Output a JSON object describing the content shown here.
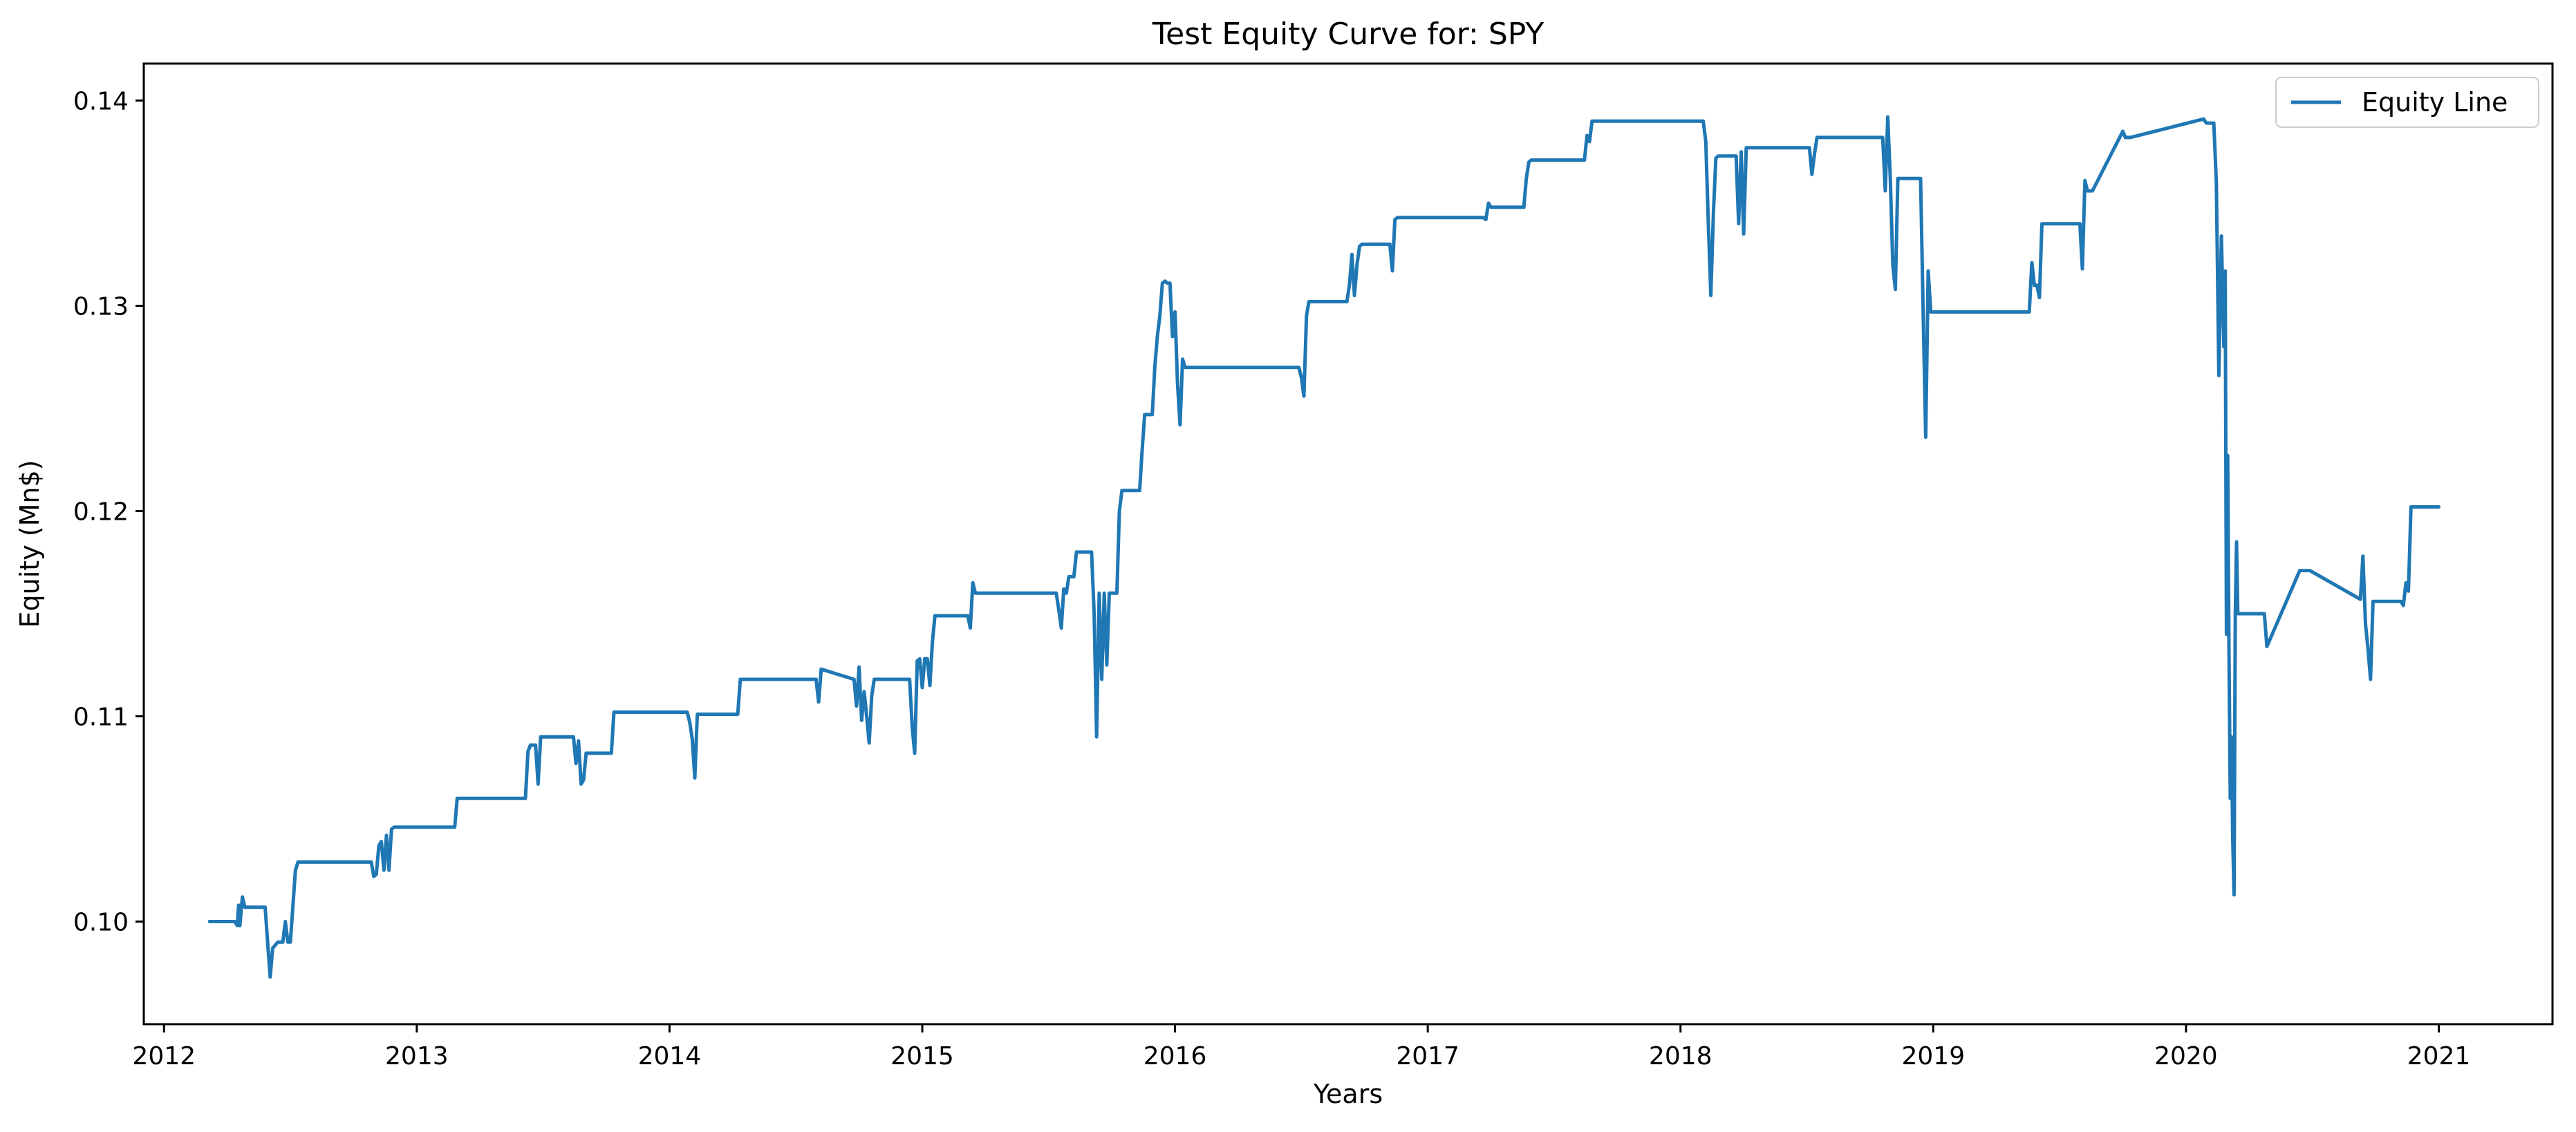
{
  "chart_data": {
    "type": "line",
    "title": "Test Equity Curve for: SPY",
    "xlabel": "Years",
    "ylabel": "Equity (Mn$)",
    "xlim": [
      2011.92,
      2021.45
    ],
    "ylim": [
      0.095,
      0.1418
    ],
    "x_ticks": [
      2012,
      2013,
      2014,
      2015,
      2016,
      2017,
      2018,
      2019,
      2020,
      2021
    ],
    "x_tick_labels": [
      "2012",
      "2013",
      "2014",
      "2015",
      "2016",
      "2017",
      "2018",
      "2019",
      "2020",
      "2021"
    ],
    "y_ticks": [
      0.1,
      0.11,
      0.12,
      0.13,
      0.14
    ],
    "y_tick_labels": [
      "0.10",
      "0.11",
      "0.12",
      "0.13",
      "0.14"
    ],
    "legend_position": "upper right",
    "grid": false,
    "colors": {
      "line": "#1f77b4",
      "axes": "#000000",
      "background": "#ffffff",
      "legend_border": "#cccccc"
    },
    "series": [
      {
        "name": "Equity Line",
        "x": [
          2012.18,
          2012.28,
          2012.29,
          2012.295,
          2012.3,
          2012.31,
          2012.32,
          2012.325,
          2012.33,
          2012.4,
          2012.41,
          2012.42,
          2012.43,
          2012.45,
          2012.47,
          2012.48,
          2012.49,
          2012.5,
          2012.52,
          2012.53,
          2012.82,
          2012.83,
          2012.84,
          2012.85,
          2012.86,
          2012.87,
          2012.88,
          2012.89,
          2012.9,
          2012.91,
          2013.15,
          2013.16,
          2013.43,
          2013.44,
          2013.45,
          2013.47,
          2013.48,
          2013.49,
          2013.62,
          2013.63,
          2013.64,
          2013.65,
          2013.66,
          2013.67,
          2013.77,
          2013.78,
          2014.07,
          2014.08,
          2014.09,
          2014.1,
          2014.11,
          2014.27,
          2014.28,
          2014.58,
          2014.59,
          2014.6,
          2014.73,
          2014.74,
          2014.75,
          2014.76,
          2014.77,
          2014.78,
          2014.79,
          2014.8,
          2014.81,
          2014.95,
          2014.96,
          2014.97,
          2014.98,
          2014.99,
          2015.0,
          2015.01,
          2015.02,
          2015.03,
          2015.04,
          2015.05,
          2015.18,
          2015.19,
          2015.2,
          2015.21,
          2015.53,
          2015.54,
          2015.55,
          2015.56,
          2015.57,
          2015.58,
          2015.59,
          2015.6,
          2015.61,
          2015.62,
          2015.63,
          2015.64,
          2015.65,
          2015.66,
          2015.67,
          2015.68,
          2015.69,
          2015.7,
          2015.71,
          2015.72,
          2015.73,
          2015.74,
          2015.75,
          2015.76,
          2015.77,
          2015.78,
          2015.79,
          2015.8,
          2015.81,
          2015.82,
          2015.83,
          2015.84,
          2015.85,
          2015.86,
          2015.87,
          2015.88,
          2015.89,
          2015.9,
          2015.91,
          2015.92,
          2015.93,
          2015.94,
          2015.95,
          2015.96,
          2015.97,
          2015.98,
          2015.99,
          2016.0,
          2016.01,
          2016.02,
          2016.03,
          2016.04,
          2016.05,
          2016.06,
          2016.48,
          2016.49,
          2016.5,
          2016.51,
          2016.52,
          2016.53,
          2016.54,
          2016.55,
          2016.56,
          2016.57,
          2016.67,
          2016.68,
          2016.69,
          2016.7,
          2016.71,
          2016.72,
          2016.73,
          2016.74,
          2016.75,
          2016.76,
          2016.84,
          2016.85,
          2016.86,
          2016.87,
          2016.88,
          2017.22,
          2017.23,
          2017.24,
          2017.25,
          2017.26,
          2017.38,
          2017.39,
          2017.4,
          2017.41,
          2017.61,
          2017.62,
          2017.63,
          2017.64,
          2017.65,
          2017.66,
          2017.67,
          2018.08,
          2018.09,
          2018.1,
          2018.11,
          2018.12,
          2018.13,
          2018.14,
          2018.15,
          2018.16,
          2018.21,
          2018.22,
          2018.23,
          2018.24,
          2018.25,
          2018.26,
          2018.27,
          2018.28,
          2018.5,
          2018.51,
          2018.52,
          2018.53,
          2018.54,
          2018.55,
          2018.78,
          2018.79,
          2018.8,
          2018.81,
          2018.82,
          2018.83,
          2018.84,
          2018.85,
          2018.86,
          2018.87,
          2018.88,
          2018.89,
          2018.95,
          2018.96,
          2018.97,
          2018.98,
          2018.99,
          2019.0,
          2019.01,
          2019.02,
          2019.03,
          2019.38,
          2019.39,
          2019.4,
          2019.41,
          2019.42,
          2019.43,
          2019.44,
          2019.45,
          2019.46,
          2019.58,
          2019.59,
          2019.6,
          2019.61,
          2019.62,
          2019.63,
          2019.75,
          2019.76,
          2019.77,
          2019.78,
          2020.07,
          2020.08,
          2020.09,
          2020.1,
          2020.11,
          2020.12,
          2020.13,
          2020.14,
          2020.15,
          2020.155,
          2020.16,
          2020.165,
          2020.17,
          2020.175,
          2020.18,
          2020.185,
          2020.19,
          2020.195,
          2020.2,
          2020.205,
          2020.21,
          2020.215,
          2020.22,
          2020.225,
          2020.23,
          2020.235,
          2020.24,
          2020.25,
          2020.26,
          2020.27,
          2020.28,
          2020.29,
          2020.3,
          2020.31,
          2020.32,
          2020.45,
          2020.46,
          2020.47,
          2020.48,
          2020.49,
          2020.69,
          2020.7,
          2020.71,
          2020.72,
          2020.73,
          2020.74,
          2020.75,
          2020.76,
          2020.77,
          2020.78,
          2020.79,
          2020.8,
          2020.85,
          2020.86,
          2020.87,
          2020.88,
          2020.89,
          2020.9,
          2020.91,
          2021.0
        ],
        "y": [
          0.1,
          0.1,
          0.0998,
          0.1008,
          0.0998,
          0.1012,
          0.1007,
          0.1007,
          0.1007,
          0.1007,
          0.099,
          0.0973,
          0.0987,
          0.099,
          0.099,
          0.1,
          0.099,
          0.099,
          0.1025,
          0.1029,
          0.1029,
          0.1022,
          0.1023,
          0.1037,
          0.1039,
          0.1025,
          0.1042,
          0.1025,
          0.1045,
          0.1046,
          0.1046,
          0.106,
          0.106,
          0.1083,
          0.1086,
          0.1086,
          0.1067,
          0.109,
          0.109,
          0.1077,
          0.1088,
          0.1067,
          0.1069,
          0.1082,
          0.1082,
          0.1102,
          0.1102,
          0.1097,
          0.1089,
          0.107,
          0.1101,
          0.1101,
          0.1118,
          0.1118,
          0.1107,
          0.1123,
          0.1118,
          0.1105,
          0.1124,
          0.1098,
          0.1112,
          0.11,
          0.1087,
          0.111,
          0.1118,
          0.1118,
          0.1095,
          0.1082,
          0.1127,
          0.1128,
          0.1114,
          0.1128,
          0.1128,
          0.1115,
          0.1136,
          0.1149,
          0.1149,
          0.1143,
          0.1165,
          0.116,
          0.116,
          0.1152,
          0.1143,
          0.1162,
          0.116,
          0.1168,
          0.1168,
          0.1168,
          0.118,
          0.118,
          0.118,
          0.118,
          0.118,
          0.118,
          0.118,
          0.115,
          0.109,
          0.116,
          0.1118,
          0.116,
          0.1125,
          0.116,
          0.116,
          0.116,
          0.116,
          0.12,
          0.121,
          0.121,
          0.121,
          0.121,
          0.121,
          0.121,
          0.121,
          0.121,
          0.123,
          0.1247,
          0.1247,
          0.1247,
          0.1247,
          0.127,
          0.1285,
          0.1295,
          0.1311,
          0.1312,
          0.1311,
          0.1311,
          0.1285,
          0.1297,
          0.1262,
          0.1242,
          0.1274,
          0.127,
          0.127,
          0.127,
          0.127,
          0.127,
          0.1265,
          0.1256,
          0.1295,
          0.1302,
          0.1302,
          0.1302,
          0.1302,
          0.1302,
          0.1302,
          0.1302,
          0.131,
          0.1325,
          0.1305,
          0.132,
          0.1329,
          0.133,
          0.133,
          0.133,
          0.133,
          0.133,
          0.1317,
          0.1342,
          0.1343,
          0.1343,
          0.1342,
          0.135,
          0.1348,
          0.1348,
          0.1348,
          0.1362,
          0.137,
          0.1371,
          0.1371,
          0.1371,
          0.1383,
          0.138,
          0.139,
          0.139,
          0.139,
          0.139,
          0.139,
          0.138,
          0.134,
          0.1305,
          0.1345,
          0.1372,
          0.1373,
          0.1373,
          0.1373,
          0.1373,
          0.134,
          0.1375,
          0.1335,
          0.1377,
          0.1377,
          0.1377,
          0.1377,
          0.1377,
          0.1364,
          0.1374,
          0.1382,
          0.1382,
          0.1382,
          0.1382,
          0.1382,
          0.1356,
          0.1392,
          0.1362,
          0.132,
          0.1308,
          0.1362,
          0.1362,
          0.1362,
          0.1362,
          0.1362,
          0.1297,
          0.1236,
          0.1317,
          0.1297,
          0.1297,
          0.1297,
          0.1297,
          0.1297,
          0.1297,
          0.1321,
          0.131,
          0.131,
          0.1304,
          0.134,
          0.134,
          0.134,
          0.134,
          0.134,
          0.1318,
          0.1361,
          0.1356,
          0.1356,
          0.1356,
          0.1385,
          0.1382,
          0.1382,
          0.1382,
          0.1391,
          0.1389,
          0.1389,
          0.1389,
          0.1389,
          0.136,
          0.1266,
          0.1334,
          0.128,
          0.1317,
          0.114,
          0.1227,
          0.113,
          0.106,
          0.109,
          0.104,
          0.1013,
          0.115,
          0.1185,
          0.115,
          0.115,
          0.115,
          0.115,
          0.115,
          0.115,
          0.115,
          0.115,
          0.115,
          0.115,
          0.115,
          0.115,
          0.115,
          0.115,
          0.115,
          0.1134,
          0.1171,
          0.1171,
          0.1171,
          0.1171,
          0.1171,
          0.1157,
          0.1178,
          0.1145,
          0.1133,
          0.1118,
          0.1156,
          0.1156,
          0.1156,
          0.1156,
          0.1156,
          0.1156,
          0.1156,
          0.1156,
          0.1154,
          0.1165,
          0.1161,
          0.1202,
          0.1202,
          0.1202,
          0.1202
        ]
      }
    ]
  }
}
